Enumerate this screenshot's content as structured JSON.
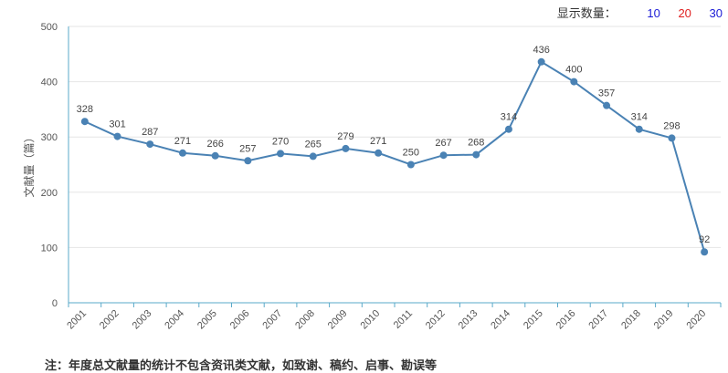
{
  "controls": {
    "display_label": "显示数量：",
    "options": [
      {
        "label": "10",
        "color": "#1a1ad6"
      },
      {
        "label": "20",
        "color": "#e02020"
      },
      {
        "label": "30",
        "color": "#1a1ad6"
      }
    ]
  },
  "footnote": "注：年度总文献量的统计不包含资讯类文献，如致谢、稿约、启事、勘误等",
  "chart_data": {
    "type": "line",
    "ylabel": "文献量（篇）",
    "ylim": [
      0,
      500
    ],
    "yticks": [
      0,
      100,
      200,
      300,
      400,
      500
    ],
    "categories": [
      "2001",
      "2002",
      "2003",
      "2004",
      "2005",
      "2006",
      "2007",
      "2008",
      "2009",
      "2010",
      "2011",
      "2012",
      "2013",
      "2014",
      "2015",
      "2016",
      "2017",
      "2018",
      "2019",
      "2020"
    ],
    "series": [
      {
        "values": [
          328,
          301,
          287,
          271,
          266,
          257,
          270,
          265,
          279,
          271,
          250,
          267,
          268,
          314,
          436,
          400,
          357,
          314,
          298,
          92
        ],
        "color": "#4a82b4"
      }
    ],
    "grid": true,
    "data_labels": true
  }
}
